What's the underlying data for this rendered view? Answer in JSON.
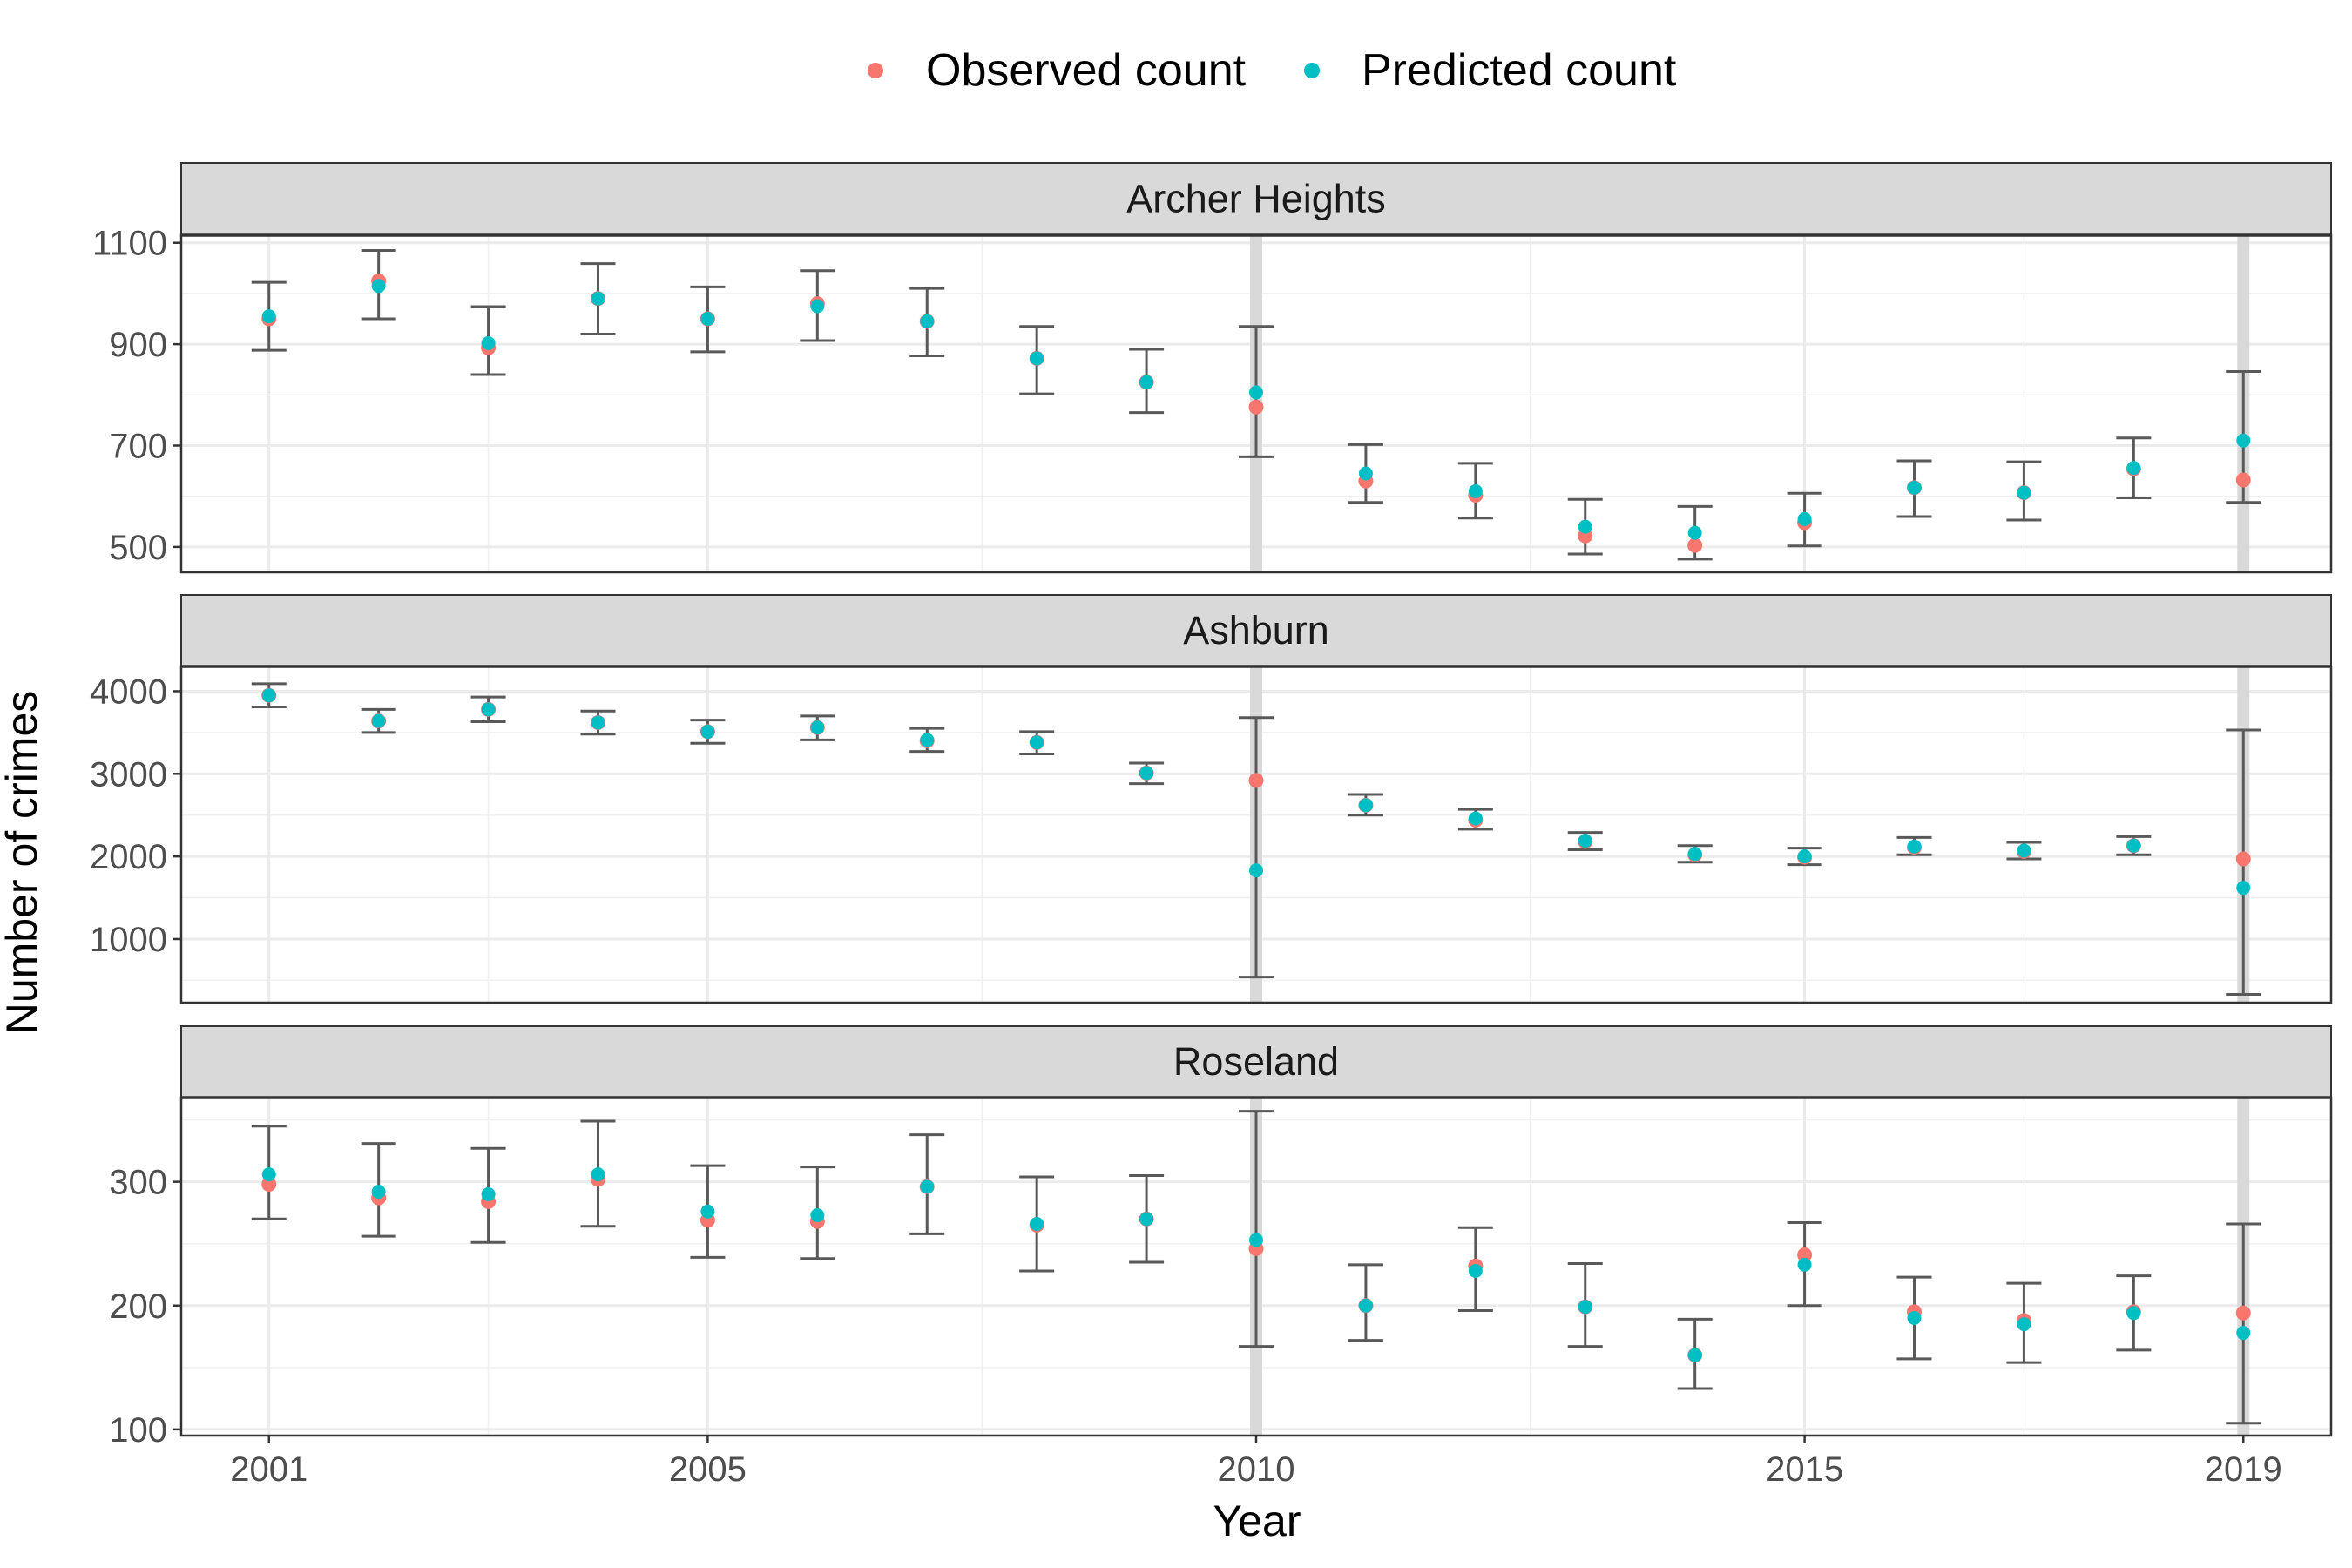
{
  "chart_data": {
    "type": "scatter",
    "xlabel": "Year",
    "ylabel": "Number of crimes",
    "x_ticks": [
      2001,
      2005,
      2010,
      2015,
      2019
    ],
    "xlim": [
      2000.2,
      2019.8
    ],
    "grid": true,
    "legend_position": "top",
    "legend": [
      {
        "name": "Observed count",
        "color": "#F8766D"
      },
      {
        "name": "Predicted count",
        "color": "#00BFC4"
      }
    ],
    "highlight_years": [
      2010,
      2019
    ],
    "x": [
      2001,
      2002,
      2003,
      2004,
      2005,
      2006,
      2007,
      2008,
      2009,
      2010,
      2011,
      2012,
      2013,
      2014,
      2015,
      2016,
      2017,
      2018,
      2019
    ],
    "panels": [
      {
        "title": "Archer Heights",
        "ylim": [
          450,
          1115
        ],
        "y_ticks": [
          500,
          700,
          900,
          1100
        ],
        "observed": [
          950,
          1025,
          893,
          990,
          950,
          980,
          945,
          872,
          825,
          776,
          630,
          602,
          522,
          503,
          548,
          617,
          607,
          654,
          632
        ],
        "predicted": [
          955,
          1015,
          902,
          990,
          950,
          975,
          945,
          872,
          825,
          805,
          645,
          610,
          540,
          528,
          555,
          617,
          607,
          656,
          710
        ],
        "lower": [
          888,
          950,
          840,
          920,
          885,
          907,
          877,
          802,
          765,
          678,
          588,
          557,
          486,
          476,
          502,
          560,
          553,
          597,
          588
        ],
        "upper": [
          1022,
          1085,
          974,
          1059,
          1013,
          1045,
          1010,
          935,
          890,
          935,
          702,
          665,
          594,
          580,
          606,
          670,
          668,
          715,
          846
        ]
      },
      {
        "title": "Ashburn",
        "ylim": [
          230,
          4300
        ],
        "y_ticks": [
          1000,
          2000,
          3000,
          4000
        ],
        "observed": [
          3950,
          3640,
          3780,
          3620,
          3510,
          3560,
          3400,
          3380,
          3010,
          2920,
          2620,
          2440,
          2180,
          2020,
          1990,
          2110,
          2060,
          2130,
          1970
        ],
        "predicted": [
          3950,
          3640,
          3780,
          3620,
          3510,
          3560,
          3410,
          3380,
          3010,
          1830,
          2620,
          2460,
          2190,
          2030,
          2000,
          2120,
          2070,
          2130,
          1620
        ],
        "lower": [
          3810,
          3500,
          3630,
          3480,
          3370,
          3410,
          3270,
          3240,
          2880,
          540,
          2500,
          2330,
          2080,
          1930,
          1900,
          2020,
          1970,
          2020,
          330
        ],
        "upper": [
          4090,
          3780,
          3930,
          3760,
          3650,
          3700,
          3550,
          3510,
          3130,
          3680,
          2750,
          2570,
          2290,
          2130,
          2100,
          2230,
          2170,
          2240,
          3530
        ]
      },
      {
        "title": "Roseland",
        "ylim": [
          95,
          368
        ],
        "y_ticks": [
          100,
          200,
          300
        ],
        "observed": [
          298,
          287,
          284,
          302,
          269,
          268,
          296,
          265,
          270,
          246,
          200,
          232,
          199,
          160,
          241,
          195,
          188,
          195,
          194
        ],
        "predicted": [
          306,
          292,
          290,
          306,
          276,
          273,
          296,
          266,
          270,
          253,
          200,
          228,
          199,
          160,
          233,
          190,
          185,
          194,
          178
        ],
        "lower": [
          270,
          256,
          251,
          264,
          239,
          238,
          258,
          228,
          235,
          167,
          172,
          196,
          167,
          133,
          200,
          157,
          154,
          164,
          105
        ],
        "upper": [
          345,
          331,
          327,
          349,
          313,
          312,
          338,
          304,
          305,
          357,
          233,
          263,
          234,
          189,
          267,
          223,
          218,
          224,
          266
        ]
      }
    ]
  }
}
